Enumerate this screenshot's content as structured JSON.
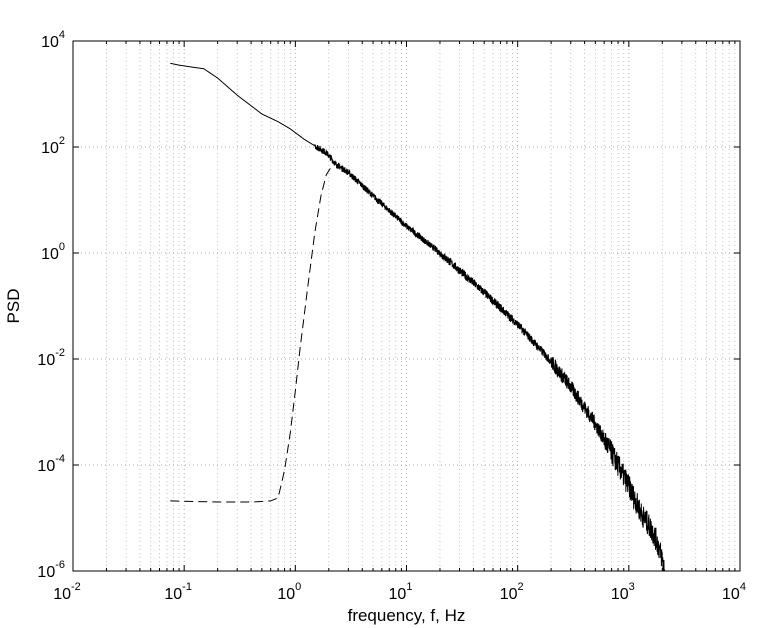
{
  "chart_data": {
    "type": "line",
    "title": "",
    "xlabel": "frequency, f, Hz",
    "ylabel": "PSD",
    "x_scale": "log",
    "y_scale": "log",
    "xlim": [
      0.01,
      10000
    ],
    "ylim": [
      1e-06,
      10000
    ],
    "grid": true,
    "x_ticks": [
      {
        "base": "10",
        "exp": "-2"
      },
      {
        "base": "10",
        "exp": "-1"
      },
      {
        "base": "10",
        "exp": "0"
      },
      {
        "base": "10",
        "exp": "1"
      },
      {
        "base": "10",
        "exp": "2"
      },
      {
        "base": "10",
        "exp": "3"
      },
      {
        "base": "10",
        "exp": "4"
      }
    ],
    "y_ticks": [
      {
        "base": "10",
        "exp": "-6"
      },
      {
        "base": "10",
        "exp": "-4"
      },
      {
        "base": "10",
        "exp": "-2"
      },
      {
        "base": "10",
        "exp": "0"
      },
      {
        "base": "10",
        "exp": "2"
      },
      {
        "base": "10",
        "exp": "4"
      }
    ],
    "series": [
      {
        "style": "solid",
        "color": "#000000",
        "noise": true,
        "x": [
          0.075,
          0.09,
          0.12,
          0.15,
          0.2,
          0.3,
          0.4,
          0.5,
          0.7,
          0.9,
          1.2,
          1.5,
          1.9,
          2.3,
          3,
          5,
          10,
          20,
          50,
          100,
          200,
          300,
          500,
          700,
          1000,
          1300,
          1600,
          1800,
          2000,
          2100
        ],
        "y": [
          3800,
          3500,
          3200,
          3000,
          2000,
          950,
          600,
          420,
          300,
          220,
          140,
          105,
          78,
          48,
          33,
          12,
          3.2,
          1.0,
          0.18,
          0.045,
          0.009,
          0.003,
          0.0006,
          0.00017,
          4e-05,
          1.2e-05,
          6e-06,
          3.5e-06,
          1.7e-06,
          1e-06
        ]
      },
      {
        "style": "dashed",
        "color": "#000000",
        "noise": false,
        "x": [
          0.075,
          0.2,
          0.4,
          0.6,
          0.7,
          0.8,
          0.9,
          1.0,
          1.1,
          1.3,
          1.5,
          1.7,
          1.9,
          2.1,
          2.3,
          2.5
        ],
        "y": [
          2.1e-05,
          2e-05,
          2e-05,
          2.1e-05,
          2.4e-05,
          8e-05,
          0.0004,
          0.0025,
          0.015,
          0.25,
          2.5,
          12,
          30,
          42,
          48,
          40
        ]
      }
    ]
  }
}
